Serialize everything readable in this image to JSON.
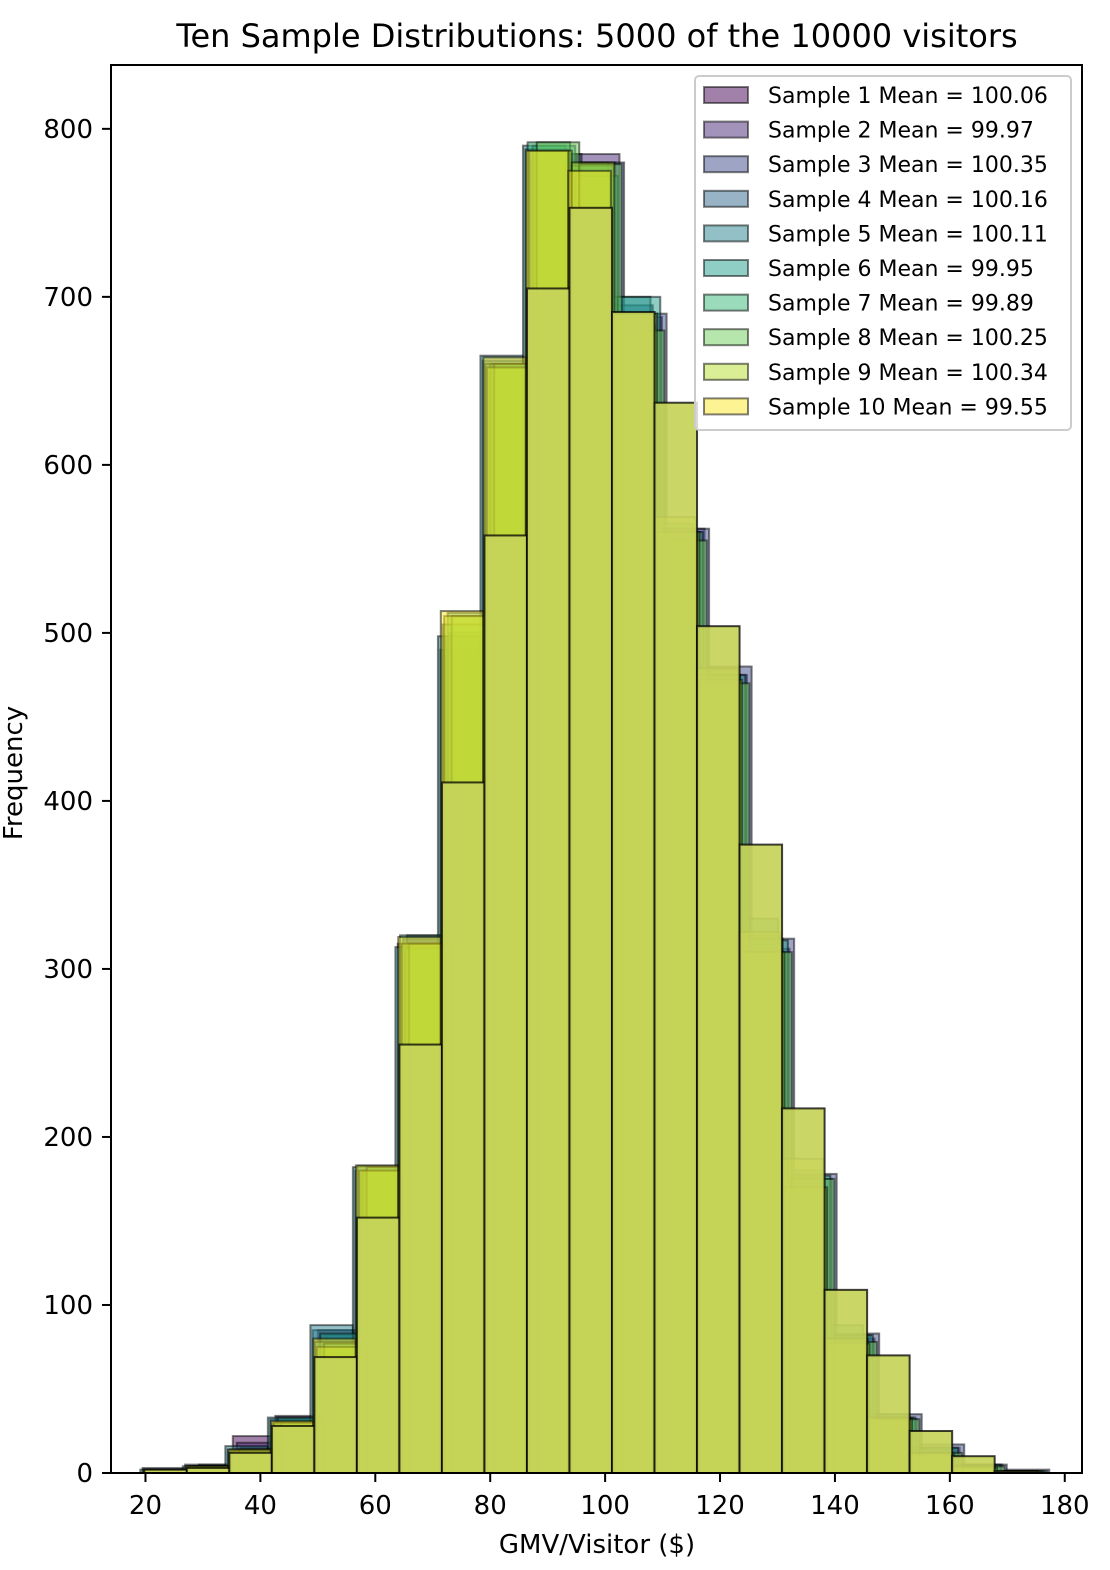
{
  "chart_data": {
    "type": "bar",
    "subtype": "overlaid-histogram",
    "title": "Ten Sample Distributions: 5000 of the 10000 visitors",
    "xlabel": "GMV/Visitor ($)",
    "ylabel": "Frequency",
    "xlim": [
      14,
      183
    ],
    "ylim": [
      0,
      838
    ],
    "xticks": [
      "20",
      "40",
      "60",
      "80",
      "100",
      "120",
      "140",
      "160",
      "180"
    ],
    "yticks": [
      "0",
      "100",
      "200",
      "300",
      "400",
      "500",
      "600",
      "700",
      "800"
    ],
    "grid": false,
    "legend_position": "top-right",
    "bin_edges": [
      20.4,
      27.8,
      35.2,
      42.6,
      50.0,
      57.4,
      64.8,
      72.2,
      79.6,
      87.0,
      94.4,
      101.8,
      109.2,
      116.6,
      124.0,
      131.4,
      138.8,
      146.2,
      153.6,
      161.0,
      168.4,
      175.8
    ],
    "series": [
      {
        "name": "Sample 1 Mean = 100.06",
        "color": "#440154",
        "values": [
          2,
          4,
          22,
          34,
          85,
          178,
          318,
          498,
          655,
          782,
          780,
          690,
          560,
          470,
          310,
          170,
          82,
          33,
          14,
          4,
          1
        ]
      },
      {
        "name": "Sample 2 Mean = 99.97",
        "color": "#482878",
        "values": [
          2,
          4,
          18,
          32,
          82,
          180,
          320,
          500,
          660,
          785,
          785,
          688,
          562,
          475,
          312,
          175,
          80,
          32,
          15,
          5,
          1
        ]
      },
      {
        "name": "Sample 3 Mean = 100.35",
        "color": "#3e4989",
        "values": [
          2,
          5,
          15,
          30,
          82,
          177,
          310,
          488,
          656,
          785,
          780,
          690,
          562,
          480,
          318,
          178,
          83,
          35,
          17,
          5,
          2
        ]
      },
      {
        "name": "Sample 4 Mean = 100.16",
        "color": "#31688e",
        "values": [
          3,
          5,
          14,
          32,
          85,
          180,
          315,
          490,
          662,
          788,
          770,
          695,
          560,
          478,
          320,
          180,
          80,
          35,
          15,
          5,
          1
        ]
      },
      {
        "name": "Sample 5 Mean = 100.11",
        "color": "#26828e",
        "values": [
          2,
          4,
          16,
          33,
          88,
          182,
          313,
          498,
          665,
          790,
          780,
          700,
          565,
          470,
          330,
          160,
          88,
          30,
          14,
          4,
          1
        ]
      },
      {
        "name": "Sample 6 Mean = 99.95",
        "color": "#1f9e89",
        "values": [
          2,
          4,
          14,
          33,
          83,
          180,
          312,
          512,
          660,
          790,
          772,
          700,
          560,
          475,
          317,
          177,
          82,
          33,
          15,
          5,
          1
        ]
      },
      {
        "name": "Sample 7 Mean = 99.89",
        "color": "#35b779",
        "values": [
          2,
          4,
          14,
          30,
          78,
          183,
          320,
          505,
          660,
          792,
          778,
          683,
          560,
          475,
          318,
          170,
          80,
          33,
          12,
          4,
          1
        ]
      },
      {
        "name": "Sample 8 Mean = 100.25",
        "color": "#6ece58",
        "values": [
          2,
          4,
          14,
          30,
          77,
          182,
          315,
          510,
          660,
          792,
          779,
          680,
          555,
          470,
          310,
          175,
          78,
          32,
          12,
          4,
          1
        ]
      },
      {
        "name": "Sample 9 Mean = 100.34",
        "color": "#b5de2b",
        "values": [
          2,
          4,
          13,
          30,
          75,
          180,
          315,
          510,
          658,
          787,
          780,
          690,
          560,
          472,
          310,
          170,
          77,
          32,
          11,
          3,
          1
        ]
      },
      {
        "name": "Sample 10 Mean = 99.55",
        "color": "#fde725",
        "values": [
          2,
          4,
          14,
          31,
          80,
          183,
          319,
          513,
          664,
          787,
          775,
          690,
          569,
          479,
          322,
          187,
          80,
          33,
          12,
          4,
          1
        ]
      }
    ],
    "top_layer_values": [
      2,
      3,
      12,
      28,
      69,
      152,
      255,
      411,
      558,
      705,
      753,
      691,
      637,
      504,
      374,
      217,
      109,
      70,
      25,
      10,
      1
    ]
  }
}
